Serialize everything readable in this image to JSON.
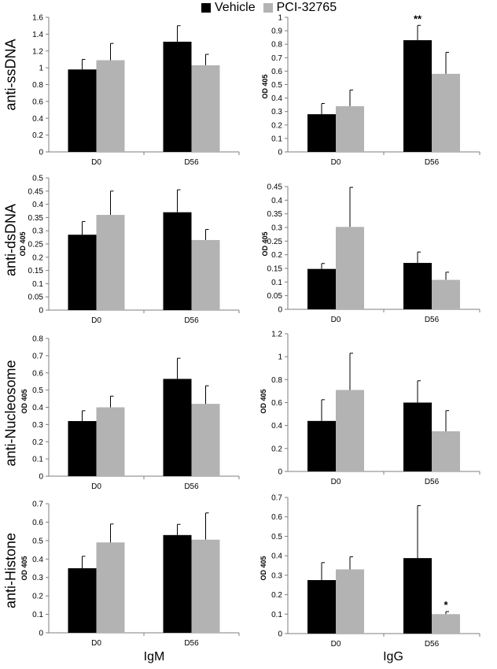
{
  "legend": [
    {
      "label": "Vehicle",
      "color": "#000000"
    },
    {
      "label": "PCI-32765",
      "color": "#b3b3b3"
    }
  ],
  "row_labels": [
    "anti-ssDNA",
    "anti-dsDNA",
    "anti-Nucleosome",
    "anti-Histone"
  ],
  "column_labels": [
    "IgM",
    "IgG"
  ],
  "chart_data": [
    {
      "type": "bar",
      "panel": "anti-ssDNA IgM",
      "categories": [
        "D0",
        "D56"
      ],
      "ylabel": "",
      "ylim": [
        0,
        1.6
      ],
      "yticks": [
        0,
        0.2,
        0.4,
        0.6,
        0.8,
        1,
        1.2,
        1.4,
        1.6
      ],
      "series": [
        {
          "name": "Vehicle",
          "values": [
            0.98,
            1.31
          ],
          "errors": [
            0.12,
            0.19
          ]
        },
        {
          "name": "PCI-32765",
          "values": [
            1.09,
            1.03
          ],
          "errors": [
            0.2,
            0.13
          ]
        }
      ],
      "annotations": []
    },
    {
      "type": "bar",
      "panel": "anti-ssDNA IgG",
      "categories": [
        "D0",
        "D56"
      ],
      "ylabel": "OD 405",
      "ylim": [
        0,
        1
      ],
      "yticks": [
        0,
        0.1,
        0.2,
        0.3,
        0.4,
        0.5,
        0.6,
        0.7,
        0.8,
        0.9,
        1
      ],
      "series": [
        {
          "name": "Vehicle",
          "values": [
            0.28,
            0.83
          ],
          "errors": [
            0.08,
            0.11
          ]
        },
        {
          "name": "PCI-32765",
          "values": [
            0.34,
            0.58
          ],
          "errors": [
            0.12,
            0.16
          ]
        }
      ],
      "annotations": [
        {
          "category": "D56",
          "series": "Vehicle",
          "text": "**"
        }
      ]
    },
    {
      "type": "bar",
      "panel": "anti-dsDNA IgM",
      "categories": [
        "D0",
        "D56"
      ],
      "ylabel": "OD 405",
      "ylim": [
        0,
        0.5
      ],
      "yticks": [
        0,
        0.05,
        0.1,
        0.15,
        0.2,
        0.25,
        0.3,
        0.35,
        0.4,
        0.45,
        0.5
      ],
      "series": [
        {
          "name": "Vehicle",
          "values": [
            0.285,
            0.37
          ],
          "errors": [
            0.05,
            0.085
          ]
        },
        {
          "name": "PCI-32765",
          "values": [
            0.36,
            0.265
          ],
          "errors": [
            0.09,
            0.04
          ]
        }
      ],
      "annotations": []
    },
    {
      "type": "bar",
      "panel": "anti-dsDNA IgG",
      "categories": [
        "D0",
        "D56"
      ],
      "ylabel": "OD 405",
      "ylim": [
        0,
        0.45
      ],
      "yticks": [
        0,
        0.05,
        0.1,
        0.15,
        0.2,
        0.25,
        0.3,
        0.35,
        0.4,
        0.45
      ],
      "series": [
        {
          "name": "Vehicle",
          "values": [
            0.148,
            0.17
          ],
          "errors": [
            0.02,
            0.04
          ]
        },
        {
          "name": "PCI-32765",
          "values": [
            0.302,
            0.108
          ],
          "errors": [
            0.145,
            0.028
          ]
        }
      ],
      "annotations": []
    },
    {
      "type": "bar",
      "panel": "anti-Nucleosome IgM",
      "categories": [
        "D0",
        "D56"
      ],
      "ylabel": "OD 405",
      "ylim": [
        0,
        0.8
      ],
      "yticks": [
        0,
        0.1,
        0.2,
        0.3,
        0.4,
        0.5,
        0.6,
        0.7,
        0.8
      ],
      "series": [
        {
          "name": "Vehicle",
          "values": [
            0.32,
            0.565
          ],
          "errors": [
            0.06,
            0.12
          ]
        },
        {
          "name": "PCI-32765",
          "values": [
            0.4,
            0.42
          ],
          "errors": [
            0.065,
            0.105
          ]
        }
      ],
      "annotations": []
    },
    {
      "type": "bar",
      "panel": "anti-Nucleosome IgG",
      "categories": [
        "D0",
        "D56"
      ],
      "ylabel": "OD 405",
      "ylim": [
        0,
        1.2
      ],
      "yticks": [
        0,
        0.2,
        0.4,
        0.6,
        0.8,
        1,
        1.2
      ],
      "series": [
        {
          "name": "Vehicle",
          "values": [
            0.44,
            0.6
          ],
          "errors": [
            0.185,
            0.19
          ]
        },
        {
          "name": "PCI-32765",
          "values": [
            0.71,
            0.35
          ],
          "errors": [
            0.32,
            0.18
          ]
        }
      ],
      "annotations": []
    },
    {
      "type": "bar",
      "panel": "anti-Histone IgM",
      "categories": [
        "D0",
        "D56"
      ],
      "ylabel": "OD 405",
      "ylim": [
        0,
        0.7
      ],
      "yticks": [
        0,
        0.1,
        0.2,
        0.3,
        0.4,
        0.5,
        0.6,
        0.7
      ],
      "series": [
        {
          "name": "Vehicle",
          "values": [
            0.35,
            0.53
          ],
          "errors": [
            0.065,
            0.058
          ]
        },
        {
          "name": "PCI-32765",
          "values": [
            0.49,
            0.505
          ],
          "errors": [
            0.1,
            0.145
          ]
        }
      ],
      "annotations": []
    },
    {
      "type": "bar",
      "panel": "anti-Histone IgG",
      "categories": [
        "D0",
        "D56"
      ],
      "ylabel": "OD 405",
      "ylim": [
        0,
        0.7
      ],
      "yticks": [
        0,
        0.1,
        0.2,
        0.3,
        0.4,
        0.5,
        0.6,
        0.7
      ],
      "series": [
        {
          "name": "Vehicle",
          "values": [
            0.275,
            0.388
          ],
          "errors": [
            0.09,
            0.27
          ]
        },
        {
          "name": "PCI-32765",
          "values": [
            0.33,
            0.1
          ],
          "errors": [
            0.065,
            0.013
          ]
        }
      ],
      "annotations": [
        {
          "category": "D56",
          "series": "PCI-32765",
          "text": "*"
        }
      ]
    }
  ]
}
